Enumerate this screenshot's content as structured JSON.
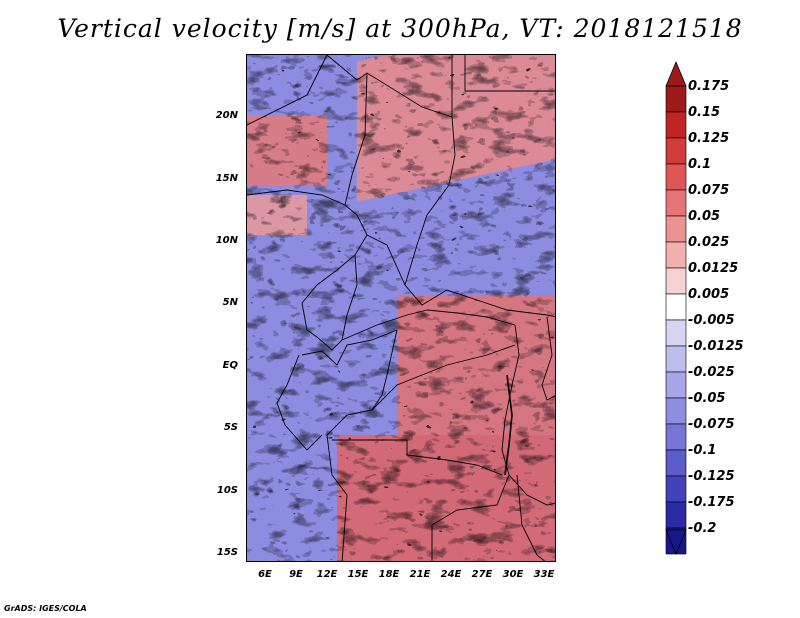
{
  "title": "Vertical velocity [m/s] at 300hPa, VT: 2018121518",
  "credit": "GrADS: IGES/COLA",
  "map": {
    "lat_labels": [
      "20N",
      "15N",
      "10N",
      "5N",
      "EQ",
      "5S",
      "10S",
      "15S"
    ],
    "lat_values": [
      20,
      15,
      10,
      5,
      0,
      -5,
      -10,
      -15
    ],
    "lat_range": [
      -16,
      24.5
    ],
    "lon_labels": [
      "6E",
      "9E",
      "12E",
      "15E",
      "18E",
      "21E",
      "24E",
      "27E",
      "30E",
      "33E"
    ],
    "lon_values": [
      6,
      9,
      12,
      15,
      18,
      21,
      24,
      27,
      30,
      33
    ],
    "lon_range": [
      4,
      34
    ]
  },
  "colorbar": {
    "labels": [
      "0.175",
      "0.15",
      "0.125",
      "0.1",
      "0.075",
      "0.05",
      "0.025",
      "0.0125",
      "0.005",
      "-0.005",
      "-0.0125",
      "-0.025",
      "-0.05",
      "-0.075",
      "-0.1",
      "-0.125",
      "-0.175",
      "-0.2"
    ],
    "colors": [
      "#9e1a1a",
      "#c02424",
      "#d23b3b",
      "#de5656",
      "#e57474",
      "#ec9292",
      "#f2b0b0",
      "#f8d2d2",
      "#ffffff",
      "#d6d6f4",
      "#bebeee",
      "#a6a6e8",
      "#8e8ee0",
      "#7676d6",
      "#5c5cc8",
      "#4242ba",
      "#2a2aa6",
      "#18188c"
    ]
  },
  "colors": {
    "warm": "#e05a5a",
    "cool": "#6e6ed8",
    "border": "#000000"
  }
}
